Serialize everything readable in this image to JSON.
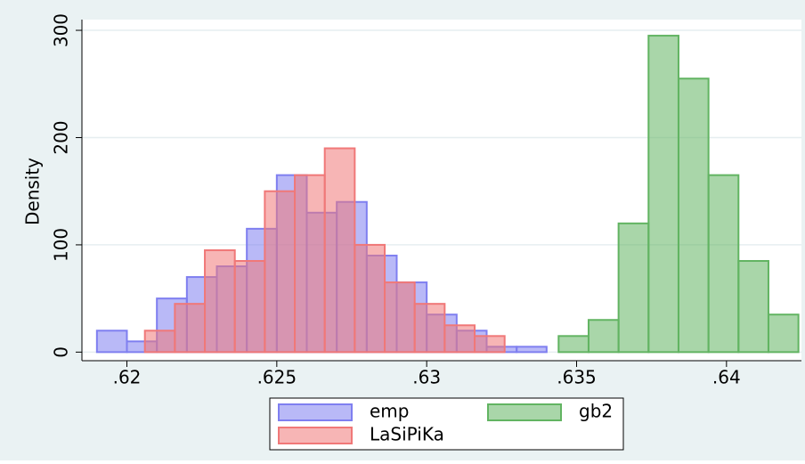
{
  "chart_data": {
    "type": "histogram",
    "y_label": "Density",
    "xlim": [
      0.6185,
      0.6425
    ],
    "ylim": [
      -8,
      310
    ],
    "xticks": [
      {
        "value": 0.62,
        "label": ".62"
      },
      {
        "value": 0.625,
        "label": ".625"
      },
      {
        "value": 0.63,
        "label": ".63"
      },
      {
        "value": 0.635,
        "label": ".635"
      },
      {
        "value": 0.64,
        "label": ".64"
      }
    ],
    "yticks": [
      0,
      100,
      200,
      300
    ],
    "grid": true,
    "legend": "bottom",
    "series": [
      {
        "name": "emp",
        "color": "#7f7ff0",
        "bins": [
          0.619,
          0.62,
          0.621,
          0.622,
          0.623,
          0.624,
          0.625,
          0.626,
          0.627,
          0.628,
          0.629,
          0.63,
          0.631,
          0.632,
          0.633,
          0.634
        ],
        "values": [
          20,
          10,
          50,
          70,
          80,
          115,
          165,
          130,
          140,
          90,
          65,
          35,
          20,
          5,
          5
        ]
      },
      {
        "name": "LaSiPiKa",
        "color": "#f07878",
        "bins": [
          0.6206,
          0.6216,
          0.6226,
          0.6236,
          0.6246,
          0.6256,
          0.6266,
          0.6276,
          0.6286,
          0.6296,
          0.6306,
          0.6316,
          0.6326
        ],
        "values": [
          20,
          45,
          95,
          85,
          150,
          165,
          190,
          100,
          65,
          45,
          25,
          15
        ]
      },
      {
        "name": "gb2",
        "color": "#62b462",
        "bins": [
          0.6344,
          0.6354,
          0.6364,
          0.6374,
          0.6384,
          0.6394,
          0.6404,
          0.6414,
          0.6424
        ],
        "values": [
          15,
          30,
          120,
          295,
          255,
          165,
          85,
          35
        ]
      }
    ]
  }
}
